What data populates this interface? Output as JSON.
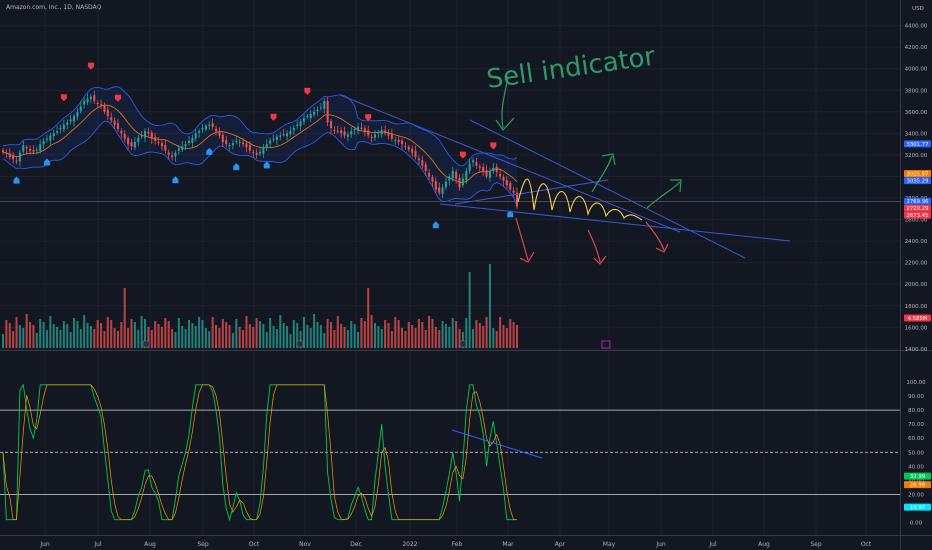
{
  "header": {
    "symbol": "Amazon.com, Inc., 1D, NASDAQ",
    "currency": "USD"
  },
  "chart_data": {
    "type": "candlestick",
    "symbol": "Amazon.com, Inc.",
    "interval": "1D",
    "exchange": "NASDAQ",
    "currency": "USD",
    "grid": true,
    "price_axis": {
      "ticks": [
        "4400.00",
        "4200.00",
        "4000.00",
        "3800.00",
        "3600.00",
        "3400.00",
        "3200.00",
        "3000.00",
        "2800.00",
        "2600.00",
        "2400.00",
        "2200.00",
        "2000.00",
        "1800.00",
        "1600.00",
        "1400.00"
      ],
      "range": [
        1380,
        4480
      ]
    },
    "time_axis": {
      "ticks": [
        "Jun",
        "Jul",
        "Aug",
        "Sep",
        "Oct",
        "Nov",
        "Dec",
        "2022",
        "Feb",
        "Mar",
        "Apr",
        "May",
        "Jun",
        "Jul",
        "Aug",
        "Sep",
        "Oct"
      ]
    },
    "price_tags": [
      {
        "label": "3301.77",
        "value": 3301.77,
        "color": "#2962ff"
      },
      {
        "label": "3025.87",
        "value": 3025.87,
        "color": "#f57c00"
      },
      {
        "label": "3035.29",
        "value": 3035.29,
        "color": "#2962ff"
      },
      {
        "label": "2769.96",
        "value": 2769.96,
        "color": "#2962ff"
      },
      {
        "label": "2720.29",
        "value": 2720.29,
        "color": "#f23645"
      },
      {
        "label": "2673.45",
        "value": 2673.45,
        "color": "#f23645"
      }
    ],
    "close_approx": [
      3225,
      3210,
      3180,
      3160,
      3140,
      3220,
      3290,
      3260,
      3240,
      3230,
      3250,
      3300,
      3330,
      3350,
      3380,
      3400,
      3420,
      3450,
      3480,
      3500,
      3530,
      3560,
      3600,
      3650,
      3700,
      3720,
      3740,
      3700,
      3680,
      3660,
      3600,
      3560,
      3520,
      3480,
      3440,
      3400,
      3350,
      3300,
      3280,
      3320,
      3360,
      3380,
      3420,
      3400,
      3350,
      3330,
      3310,
      3280,
      3240,
      3200,
      3180,
      3220,
      3260,
      3280,
      3300,
      3330,
      3360,
      3400,
      3420,
      3450,
      3470,
      3480,
      3460,
      3420,
      3380,
      3320,
      3300,
      3290,
      3310,
      3330,
      3320,
      3300,
      3270,
      3240,
      3220,
      3200,
      3230,
      3270,
      3300,
      3330,
      3350,
      3370,
      3380,
      3390,
      3400,
      3420,
      3450,
      3480,
      3510,
      3540,
      3560,
      3580,
      3600,
      3620,
      3640,
      3700,
      3500,
      3450,
      3430,
      3420,
      3400,
      3380,
      3390,
      3420,
      3440,
      3460,
      3440,
      3410,
      3380,
      3360,
      3390,
      3410,
      3430,
      3400,
      3380,
      3350,
      3340,
      3320,
      3300,
      3280,
      3250,
      3220,
      3180,
      3150,
      3100,
      3050,
      3000,
      2950,
      2880,
      2850,
      2900,
      2950,
      3000,
      3050,
      2980,
      2900,
      2980,
      3050,
      3120,
      3150,
      3100,
      3080,
      3040,
      3000,
      3050,
      3080,
      3040,
      3000,
      2960,
      2920,
      2880,
      2850,
      2720
    ],
    "volume": {
      "label": "4.585M",
      "value_millions": 4.585,
      "spikes_at_index": [
        36,
        108,
        138,
        144
      ]
    },
    "oscillator": {
      "ticks": [
        "100.00",
        "90.00",
        "80.00",
        "70.00",
        "60.00",
        "50.00",
        "40.00",
        "30.00",
        "20.00",
        "10.00",
        "0.00"
      ],
      "range": [
        -4,
        104
      ],
      "levels": [
        80,
        50,
        20
      ],
      "tags": [
        {
          "label": "32.99",
          "value": 32.99,
          "color": "#00c853"
        },
        {
          "label": "26.99",
          "value": 26.99,
          "color": "#f57c00"
        },
        {
          "label": "10.97",
          "value": 10.97,
          "color": "#00e5ff"
        }
      ]
    },
    "annotations": [
      {
        "text": "Sell indicator",
        "color": "#2e9a6a"
      }
    ]
  }
}
